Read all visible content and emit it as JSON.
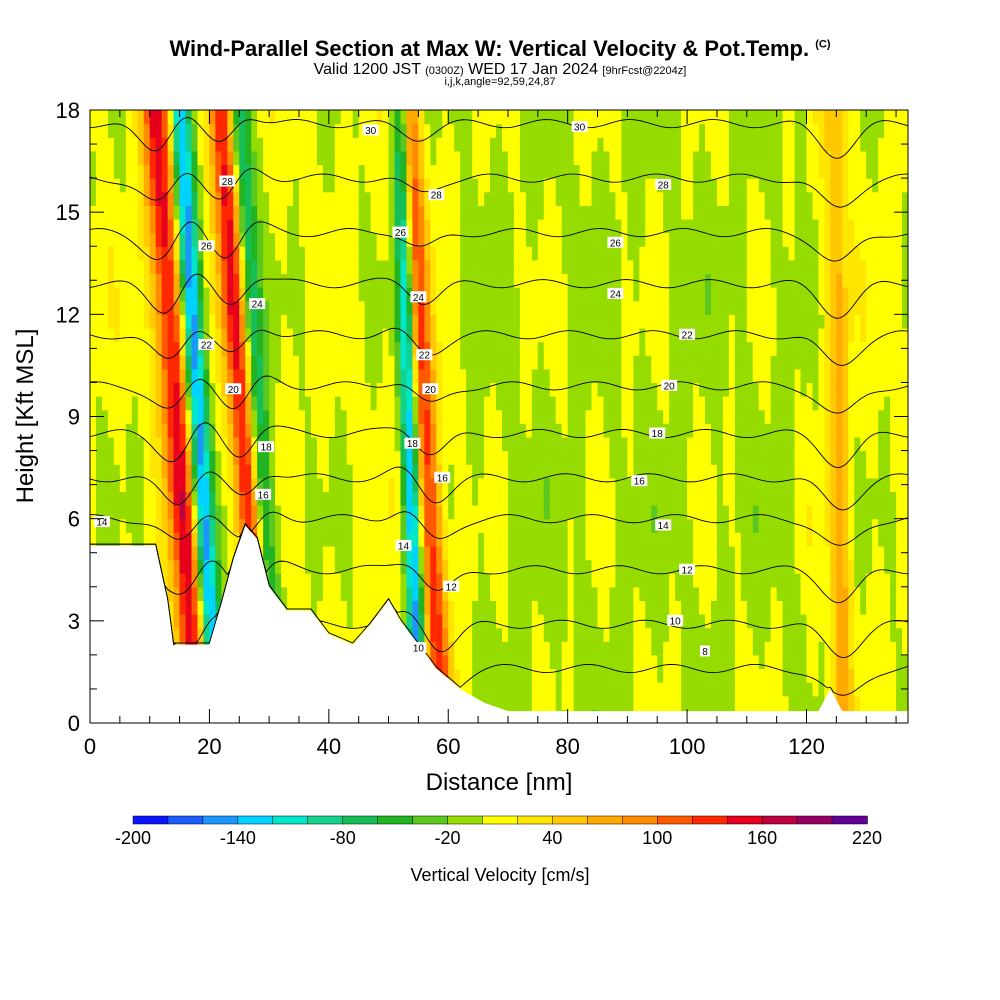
{
  "header": {
    "title": "Wind-Parallel Section at Max W: Vertical Velocity & Pot.Temp.",
    "copyright": "(C)",
    "valid_prefix": "Valid 1200 JST",
    "valid_utc": "(0300Z)",
    "valid_date": "WED 17 Jan 2024",
    "forecast": "[9hrFcst@2204z]",
    "indices": "i,j,k,angle=92,59,24,87"
  },
  "chart_data": {
    "type": "heatmap",
    "title": "Wind-Parallel Section at Max W: Vertical Velocity & Pot.Temp.",
    "xlabel": "Distance [nm]",
    "ylabel": "Height [Kft MSL]",
    "xlim": [
      0,
      137
    ],
    "ylim": [
      0,
      18
    ],
    "x_ticks": [
      0,
      20,
      40,
      60,
      80,
      100,
      120
    ],
    "y_ticks": [
      0,
      3,
      6,
      9,
      12,
      15,
      18
    ],
    "colorbar": {
      "label": "Vertical Velocity [cm/s]",
      "levels": [
        -200,
        -180,
        -160,
        -140,
        -120,
        -100,
        -80,
        -60,
        -40,
        -20,
        0,
        20,
        40,
        60,
        80,
        100,
        120,
        140,
        160,
        180,
        200,
        220
      ],
      "tick_labels": [
        "-200",
        "-140",
        "-80",
        "-20",
        "40",
        "100",
        "160",
        "220"
      ],
      "colors": [
        "#0a14ff",
        "#1e5cff",
        "#1c96ff",
        "#00d2ff",
        "#00e6c8",
        "#12d28c",
        "#16be58",
        "#22b422",
        "#5ac81e",
        "#96dc00",
        "#ffff00",
        "#ffe600",
        "#ffc800",
        "#ffaa00",
        "#ff8c00",
        "#ff5a00",
        "#ff2800",
        "#e6001e",
        "#be0041",
        "#960064",
        "#640096"
      ]
    },
    "terrain": [
      [
        0,
        5.2
      ],
      [
        11,
        5.2
      ],
      [
        13,
        3.6
      ],
      [
        14,
        2.3
      ],
      [
        20,
        2.3
      ],
      [
        22,
        3.5
      ],
      [
        24,
        4.8
      ],
      [
        26,
        5.8
      ],
      [
        28,
        5.4
      ],
      [
        30,
        4.0
      ],
      [
        33,
        3.3
      ],
      [
        37,
        3.3
      ],
      [
        40,
        2.6
      ],
      [
        44,
        2.3
      ],
      [
        47,
        2.9
      ],
      [
        50,
        3.6
      ],
      [
        52,
        3.0
      ],
      [
        55,
        2.3
      ],
      [
        58,
        1.6
      ],
      [
        62,
        1.0
      ],
      [
        66,
        0.6
      ],
      [
        70,
        0.35
      ],
      [
        122,
        0.35
      ],
      [
        124,
        1.0
      ],
      [
        126,
        0.35
      ],
      [
        137,
        0.35
      ]
    ],
    "updrafts": [
      {
        "x_base": 18,
        "x_top": 11,
        "w": 150,
        "width": 3.5
      },
      {
        "x_base": 29,
        "x_top": 22,
        "w": 150,
        "width": 3.0
      },
      {
        "x_base": 59,
        "x_top": 53,
        "w": 120,
        "width": 3.0
      },
      {
        "x_base": 126,
        "x_top": 125,
        "w": 60,
        "width": 2.5
      }
    ],
    "downdrafts": [
      {
        "x_base": 21,
        "x_top": 15,
        "w": -160,
        "width": 2.5
      },
      {
        "x_base": 31,
        "x_top": 25,
        "w": -100,
        "width": 2.5
      },
      {
        "x_base": 55,
        "x_top": 52,
        "w": -150,
        "width": 2.0
      }
    ],
    "theta_levels": [
      {
        "value": 8,
        "base_height": 1.6
      },
      {
        "value": 10,
        "base_height": 2.9
      },
      {
        "value": 12,
        "base_height": 4.5
      },
      {
        "value": 14,
        "base_height": 6.0
      },
      {
        "value": 16,
        "base_height": 7.2
      },
      {
        "value": 18,
        "base_height": 8.5
      },
      {
        "value": 20,
        "base_height": 9.9
      },
      {
        "value": 22,
        "base_height": 11.4
      },
      {
        "value": 24,
        "base_height": 12.9
      },
      {
        "value": 26,
        "base_height": 14.4
      },
      {
        "value": 28,
        "base_height": 16.0
      },
      {
        "value": 30,
        "base_height": 17.6
      }
    ],
    "contour_labels": [
      {
        "text": "30",
        "x": 47,
        "y": 17.4
      },
      {
        "text": "30",
        "x": 82,
        "y": 17.5
      },
      {
        "text": "28",
        "x": 23,
        "y": 15.9
      },
      {
        "text": "28",
        "x": 58,
        "y": 15.5
      },
      {
        "text": "28",
        "x": 96,
        "y": 15.8
      },
      {
        "text": "26",
        "x": 19.5,
        "y": 14.0
      },
      {
        "text": "26",
        "x": 52,
        "y": 14.4
      },
      {
        "text": "26",
        "x": 88,
        "y": 14.1
      },
      {
        "text": "24",
        "x": 28,
        "y": 12.3
      },
      {
        "text": "24",
        "x": 55,
        "y": 12.5
      },
      {
        "text": "24",
        "x": 88,
        "y": 12.6
      },
      {
        "text": "22",
        "x": 19.5,
        "y": 11.1
      },
      {
        "text": "22",
        "x": 56,
        "y": 10.8
      },
      {
        "text": "22",
        "x": 100,
        "y": 11.4
      },
      {
        "text": "20",
        "x": 24,
        "y": 9.8
      },
      {
        "text": "20",
        "x": 57,
        "y": 9.8
      },
      {
        "text": "20",
        "x": 97,
        "y": 9.9
      },
      {
        "text": "18",
        "x": 29.5,
        "y": 8.1
      },
      {
        "text": "18",
        "x": 54,
        "y": 8.2
      },
      {
        "text": "18",
        "x": 95,
        "y": 8.5
      },
      {
        "text": "16",
        "x": 29,
        "y": 6.7
      },
      {
        "text": "16",
        "x": 59,
        "y": 7.2
      },
      {
        "text": "16",
        "x": 92,
        "y": 7.1
      },
      {
        "text": "14",
        "x": 2,
        "y": 5.9
      },
      {
        "text": "14",
        "x": 52.5,
        "y": 5.2
      },
      {
        "text": "14",
        "x": 96,
        "y": 5.8
      },
      {
        "text": "12",
        "x": 60.5,
        "y": 4.0
      },
      {
        "text": "12",
        "x": 100,
        "y": 4.5
      },
      {
        "text": "10",
        "x": 55,
        "y": 2.2
      },
      {
        "text": "10",
        "x": 98,
        "y": 3.0
      },
      {
        "text": "8",
        "x": 103,
        "y": 2.1
      }
    ]
  }
}
